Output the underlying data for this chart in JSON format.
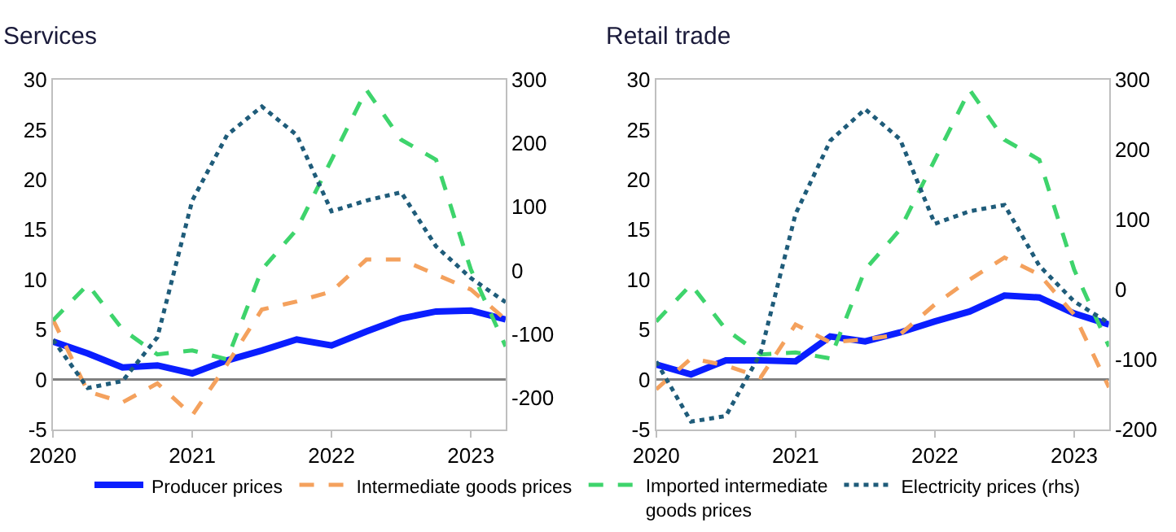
{
  "chart_data": [
    {
      "type": "line",
      "title": "Services",
      "legend": "bottom",
      "x": [
        2020,
        2020.25,
        2020.5,
        2020.75,
        2021,
        2021.25,
        2021.5,
        2021.75,
        2022,
        2022.25,
        2022.5,
        2022.75,
        2023,
        2023.25
      ],
      "xlim": [
        2020,
        2023.25
      ],
      "xticks": [
        2020,
        2021,
        2022,
        2023
      ],
      "ylim": [
        -5,
        30
      ],
      "yticks": [
        -5,
        0,
        5,
        10,
        15,
        20,
        25,
        30
      ],
      "y2lim": [
        -250,
        300
      ],
      "y2ticks": [
        -200,
        -100,
        0,
        100,
        200,
        300
      ],
      "ref_lines": [
        {
          "axis": "y",
          "value": 0,
          "color": "#808080"
        }
      ],
      "series": [
        {
          "name": "Producer prices",
          "color": "#0a1eff",
          "line_style": "solid",
          "values": [
            3.8,
            2.6,
            1.2,
            1.4,
            0.6,
            1.9,
            2.9,
            4.0,
            3.4,
            4.8,
            6.1,
            6.8,
            6.9,
            6.0
          ]
        },
        {
          "name": "Intermediate goods prices",
          "color": "#f4a15d",
          "line_style": "dashed",
          "values": [
            6.0,
            -1.2,
            -2.3,
            -0.4,
            -3.6,
            1.5,
            7.0,
            7.8,
            8.8,
            12.0,
            12.0,
            10.5,
            9.0,
            6.0
          ]
        },
        {
          "name": "Imported intermediate goods prices",
          "color": "#3ed46c",
          "line_style": "dashed",
          "values": [
            5.9,
            9.5,
            5.0,
            2.5,
            2.9,
            2.0,
            11.0,
            15.0,
            22.0,
            29.0,
            24.0,
            22.0,
            11.0,
            3.3
          ]
        },
        {
          "name": "Electricity prices (rhs)",
          "color": "#1f5c7a",
          "line_style": "dotted",
          "axis": "y2",
          "values": [
            -109,
            -185,
            -174,
            -105,
            110,
            213,
            258,
            213,
            93,
            110,
            123,
            38,
            -12,
            -50
          ]
        }
      ]
    },
    {
      "type": "line",
      "title": "Retail trade",
      "x": [
        2020,
        2020.25,
        2020.5,
        2020.75,
        2021,
        2021.25,
        2021.5,
        2021.75,
        2022,
        2022.25,
        2022.5,
        2022.75,
        2023,
        2023.25
      ],
      "xlim": [
        2020,
        2023.25
      ],
      "xticks": [
        2020,
        2021,
        2022,
        2023
      ],
      "ylim": [
        -5,
        30
      ],
      "yticks": [
        -5,
        0,
        5,
        10,
        15,
        20,
        25,
        30
      ],
      "y2lim": [
        -200,
        300
      ],
      "y2ticks": [
        -200,
        -100,
        0,
        100,
        200,
        300
      ],
      "ref_lines": [
        {
          "axis": "y",
          "value": 0,
          "color": "#808080"
        }
      ],
      "series": [
        {
          "color": "#0a1eff",
          "line_style": "solid",
          "values": [
            1.5,
            0.5,
            1.9,
            1.9,
            1.8,
            4.3,
            3.8,
            4.7,
            5.8,
            6.8,
            8.4,
            8.2,
            6.6,
            5.5
          ]
        },
        {
          "color": "#f4a15d",
          "line_style": "dashed",
          "values": [
            -1.0,
            2.1,
            1.4,
            0.2,
            5.5,
            3.7,
            4.0,
            4.5,
            7.5,
            10.0,
            12.2,
            10.5,
            6.5,
            -0.8
          ]
        },
        {
          "color": "#3ed46c",
          "line_style": "dashed",
          "values": [
            5.8,
            9.5,
            5.0,
            2.5,
            2.7,
            2.1,
            11.0,
            15.0,
            22.0,
            29.0,
            24.0,
            22.0,
            11.0,
            3.3
          ]
        },
        {
          "color": "#1f5c7a",
          "line_style": "dotted",
          "axis": "y2",
          "values": [
            -103,
            -189,
            -181,
            -91,
            108,
            213,
            258,
            215,
            94,
            112,
            121,
            34,
            -17,
            -48
          ]
        }
      ]
    }
  ]
}
